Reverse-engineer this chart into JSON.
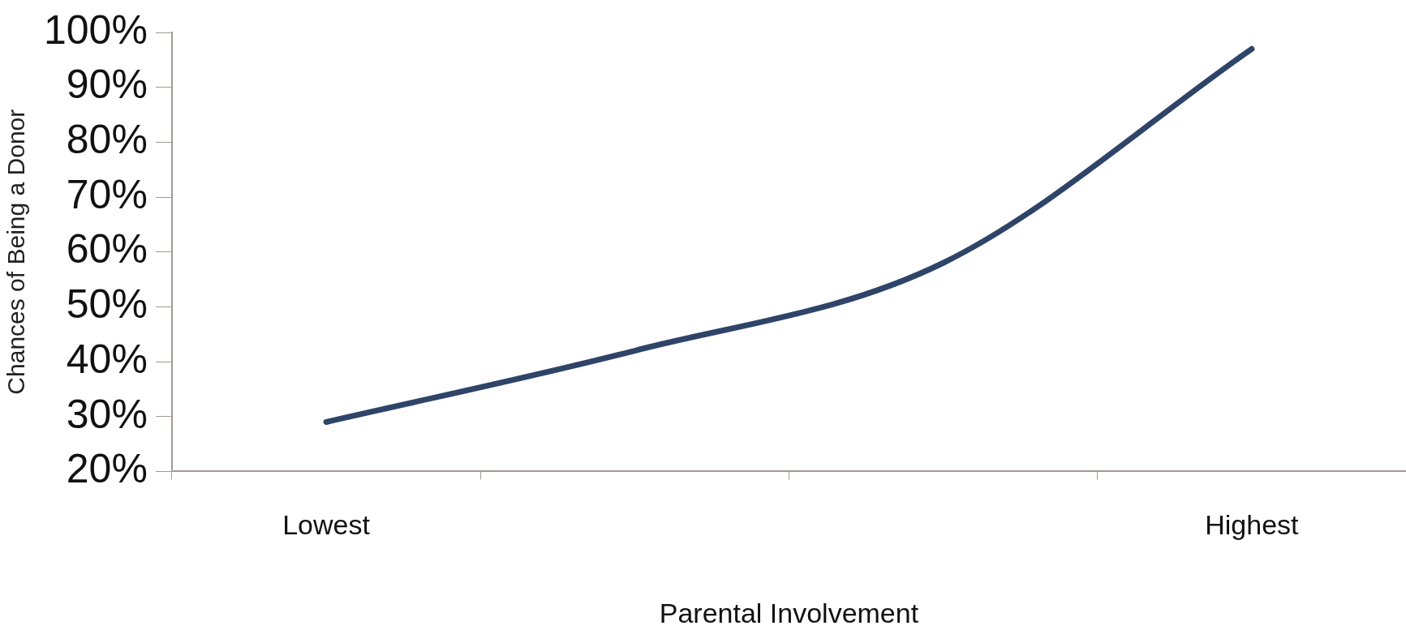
{
  "chart_data": {
    "type": "line",
    "xlabel": "Parental Involvement",
    "ylabel": "Chances of Being a Donor",
    "categories": [
      "Lowest",
      null,
      null,
      "Highest"
    ],
    "series": [
      {
        "color": "#2e4468",
        "values": [
          29,
          42,
          58,
          97
        ]
      }
    ],
    "ylim": [
      20,
      100
    ],
    "yticks": [
      {
        "value": 20,
        "label": "20%"
      },
      {
        "value": 30,
        "label": "30%"
      },
      {
        "value": 40,
        "label": "40%"
      },
      {
        "value": 50,
        "label": "50%"
      },
      {
        "value": 60,
        "label": "60%"
      },
      {
        "value": 70,
        "label": "70%"
      },
      {
        "value": 80,
        "label": "80%"
      },
      {
        "value": 90,
        "label": "90%"
      },
      {
        "value": 100,
        "label": "100%"
      }
    ],
    "grid": false,
    "legend": false,
    "marker": "none",
    "line_style": "solid"
  }
}
